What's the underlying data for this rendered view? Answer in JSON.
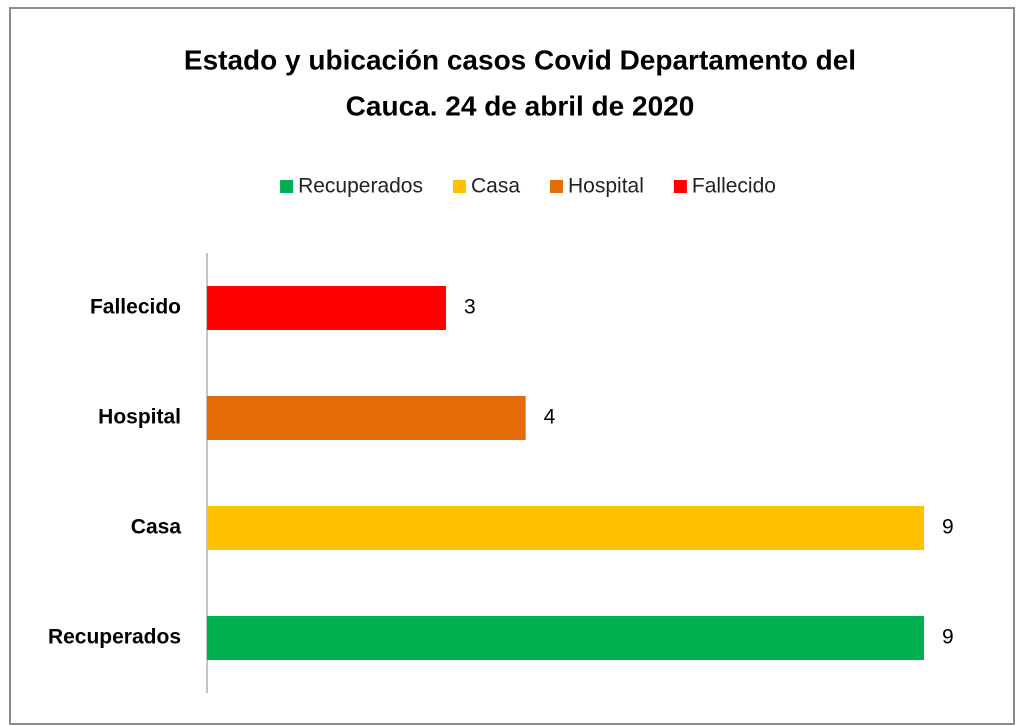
{
  "chart_data": {
    "type": "hbar",
    "title": [
      "Estado y ubicación casos Covid  Departamento del",
      "Cauca. 24 de abril de 2020"
    ],
    "categories": [
      "Recuperados",
      "Casa",
      "Hospital",
      "Fallecido"
    ],
    "values": [
      9,
      9,
      4,
      3
    ],
    "colors": [
      "#00b050",
      "#ffc000",
      "#e36c09",
      "#ff0000"
    ],
    "xlim": [
      0,
      9
    ],
    "legend": "top"
  }
}
